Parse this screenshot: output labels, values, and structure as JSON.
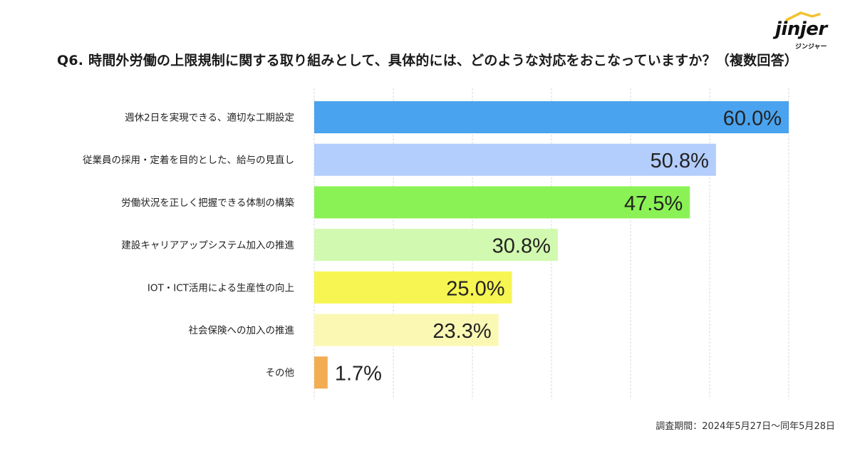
{
  "title": "Q6. 時間外労働の上限規制に関する取り組みとして、具体的には、どのような対応をおこなっていますか？（複数回答）",
  "logo": {
    "word": "jinjer",
    "sub": "ジンジャー"
  },
  "footnote": "調査期間：2024年5月27日〜同年5月28日",
  "chart_data": {
    "type": "bar",
    "orientation": "horizontal",
    "title": "Q6. 時間外労働の上限規制に関する取り組みとして、具体的には、どのような対応をおこなっていますか？（複数回答）",
    "categories": [
      "週休2日を実現できる、適切な工期設定",
      "従業員の採用・定着を目的とした、給与の見直し",
      "労働状況を正しく把握できる体制の構築",
      "建設キャリアアップシステム加入の推進",
      "IOT・ICT活用による生産性の向上",
      "社会保険への加入の推進",
      "その他"
    ],
    "values": [
      60.0,
      50.8,
      47.5,
      30.8,
      25.0,
      23.3,
      1.7
    ],
    "value_labels": [
      "60.0%",
      "50.8%",
      "47.5%",
      "30.8%",
      "25.0%",
      "23.3%",
      "1.7%"
    ],
    "colors": [
      "#4aa3ee",
      "#b3cdfc",
      "#8af255",
      "#d2f9b0",
      "#f6f552",
      "#fbf8b4",
      "#f2ad52"
    ],
    "xlim": [
      0,
      60
    ],
    "grid": true,
    "unit": "%"
  }
}
